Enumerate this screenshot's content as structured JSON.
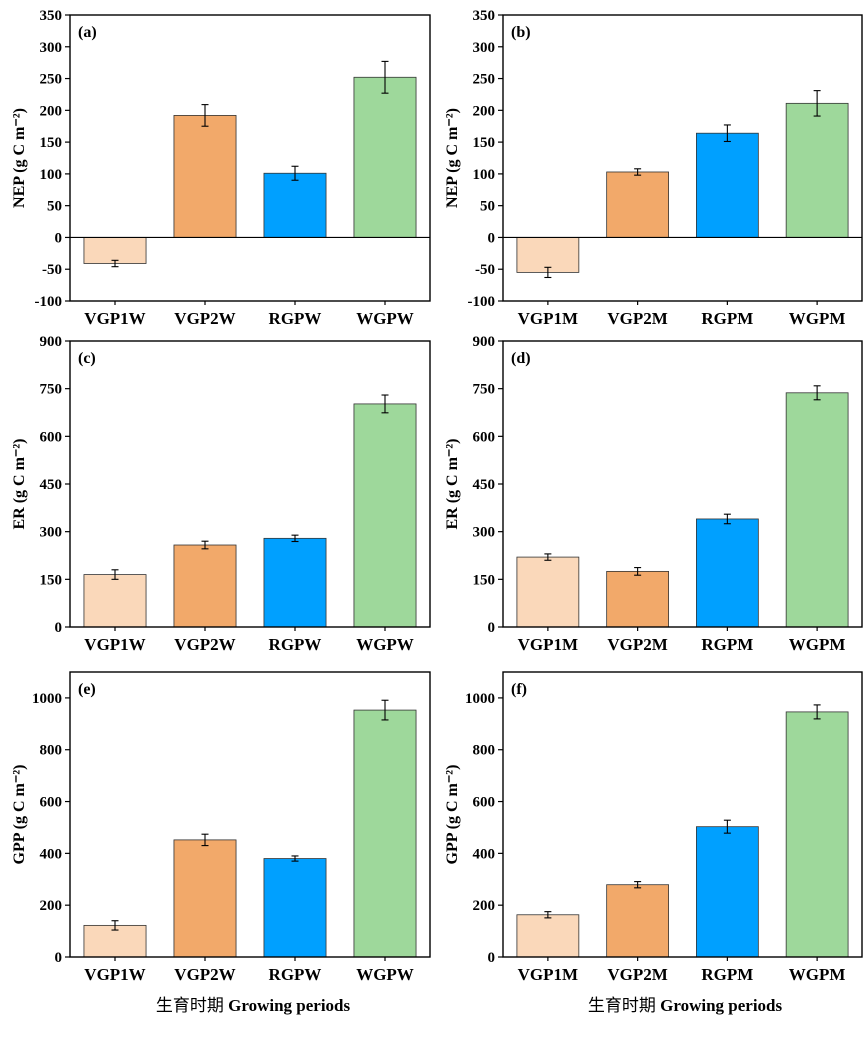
{
  "xlabel": {
    "zh": "生育时期",
    "en": "Growing periods"
  },
  "colors": [
    "#FAD8BA",
    "#F2A96A",
    "#00A0FF",
    "#9ED89B"
  ],
  "chart_data": [
    {
      "type": "bar",
      "panel": "(a)",
      "categories": [
        "VGP1W",
        "VGP2W",
        "RGPW",
        "WGPW"
      ],
      "values": [
        -41,
        192,
        101,
        252
      ],
      "errors": [
        5,
        17,
        11,
        25
      ],
      "ylabel": "NEP (g C m⁻²)",
      "ylim": [
        -100,
        350
      ],
      "yticks": [
        -100,
        -50,
        0,
        50,
        100,
        150,
        200,
        250,
        300,
        350
      ],
      "zeroline": true
    },
    {
      "type": "bar",
      "panel": "(b)",
      "categories": [
        "VGP1M",
        "VGP2M",
        "RGPM",
        "WGPM"
      ],
      "values": [
        -55,
        103,
        164,
        211
      ],
      "errors": [
        8,
        5,
        13,
        20
      ],
      "ylabel": "NEP (g C m⁻²)",
      "ylim": [
        -100,
        350
      ],
      "yticks": [
        -100,
        -50,
        0,
        50,
        100,
        150,
        200,
        250,
        300,
        350
      ],
      "zeroline": true
    },
    {
      "type": "bar",
      "panel": "(c)",
      "categories": [
        "VGP1W",
        "VGP2W",
        "RGPW",
        "WGPW"
      ],
      "values": [
        165,
        258,
        279,
        702
      ],
      "errors": [
        15,
        12,
        10,
        28
      ],
      "ylabel": "ER (g C m⁻²)",
      "ylim": [
        0,
        900
      ],
      "yticks": [
        0,
        150,
        300,
        450,
        600,
        750,
        900
      ],
      "zeroline": false
    },
    {
      "type": "bar",
      "panel": "(d)",
      "categories": [
        "VGP1M",
        "VGP2M",
        "RGPM",
        "WGPM"
      ],
      "values": [
        220,
        175,
        340,
        737
      ],
      "errors": [
        10,
        12,
        15,
        22
      ],
      "ylabel": "ER (g C m⁻²)",
      "ylim": [
        0,
        900
      ],
      "yticks": [
        0,
        150,
        300,
        450,
        600,
        750,
        900
      ],
      "zeroline": false
    },
    {
      "type": "bar",
      "panel": "(e)",
      "categories": [
        "VGP1W",
        "VGP2W",
        "RGPW",
        "WGPW"
      ],
      "values": [
        122,
        452,
        380,
        953
      ],
      "errors": [
        18,
        22,
        10,
        38
      ],
      "ylabel": "GPP (g C m⁻²)",
      "ylim": [
        0,
        1100
      ],
      "yticks": [
        0,
        200,
        400,
        600,
        800,
        1000
      ],
      "zeroline": false
    },
    {
      "type": "bar",
      "panel": "(f)",
      "categories": [
        "VGP1M",
        "VGP2M",
        "RGPM",
        "WGPM"
      ],
      "values": [
        163,
        279,
        503,
        946
      ],
      "errors": [
        12,
        12,
        25,
        27
      ],
      "ylabel": "GPP (g C m⁻²)",
      "ylim": [
        0,
        1100
      ],
      "yticks": [
        0,
        200,
        400,
        600,
        800,
        1000
      ],
      "zeroline": false
    }
  ]
}
